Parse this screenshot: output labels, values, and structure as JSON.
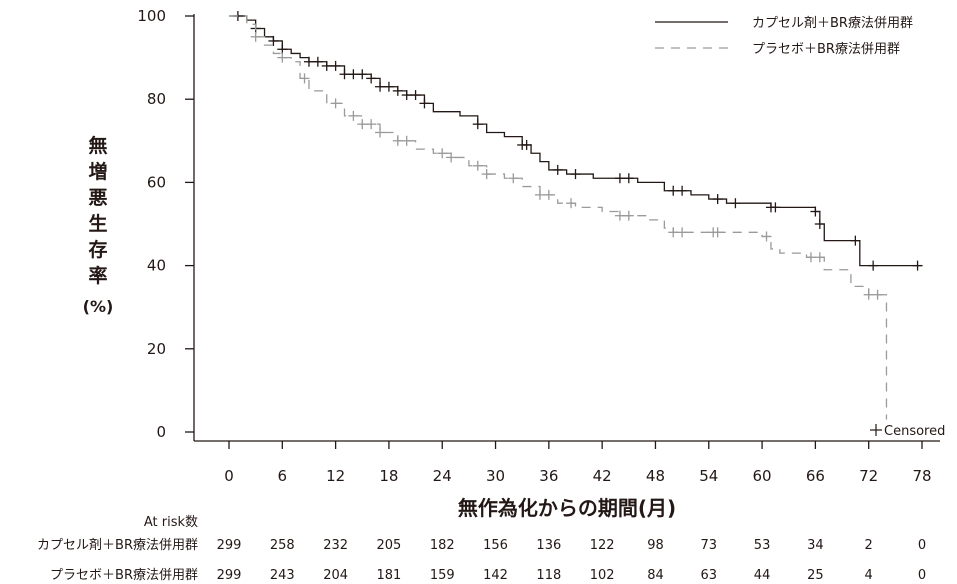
{
  "chart_data": {
    "type": "line",
    "title": "",
    "xlabel": "無作為化からの期間(月)",
    "ylabel": [
      "無",
      "増",
      "悪",
      "生",
      "存",
      "率"
    ],
    "ylabel_unit": "(%)",
    "xlim": [
      0,
      78
    ],
    "ylim": [
      0,
      100
    ],
    "x_ticks": [
      0,
      6,
      12,
      18,
      24,
      30,
      36,
      42,
      48,
      54,
      60,
      66,
      72,
      78
    ],
    "y_ticks": [
      0,
      20,
      40,
      60,
      80,
      100
    ],
    "grid": false,
    "legend_position": "top-right",
    "censored_label": "Censored",
    "series": [
      {
        "name": "カプセル剤＋BR療法併用群",
        "color": "#231815",
        "dash": "solid",
        "steps": [
          [
            0,
            100
          ],
          [
            2,
            99
          ],
          [
            3,
            97
          ],
          [
            4,
            95
          ],
          [
            5,
            94
          ],
          [
            6,
            92
          ],
          [
            7,
            91
          ],
          [
            8,
            90
          ],
          [
            9,
            89
          ],
          [
            11,
            88
          ],
          [
            13,
            86
          ],
          [
            16,
            85
          ],
          [
            17,
            83
          ],
          [
            19,
            82
          ],
          [
            20,
            81
          ],
          [
            22,
            79
          ],
          [
            23,
            77
          ],
          [
            26,
            76
          ],
          [
            28,
            74
          ],
          [
            29,
            72
          ],
          [
            31,
            71
          ],
          [
            33,
            69
          ],
          [
            34,
            67
          ],
          [
            35,
            65
          ],
          [
            36,
            63
          ],
          [
            38,
            62
          ],
          [
            41,
            61
          ],
          [
            46,
            60
          ],
          [
            49,
            58
          ],
          [
            52,
            57
          ],
          [
            54,
            56
          ],
          [
            56,
            55
          ],
          [
            61,
            54
          ],
          [
            66,
            53
          ],
          [
            66.5,
            50
          ],
          [
            67,
            46
          ],
          [
            71,
            40
          ],
          [
            78,
            40
          ]
        ],
        "censored": [
          1,
          3,
          5,
          6,
          9,
          10,
          11,
          12,
          13,
          14,
          15,
          16,
          17,
          18,
          19,
          20,
          21,
          22,
          28,
          33,
          33.5,
          37,
          39,
          44,
          45,
          50,
          51,
          55,
          57,
          61,
          61.5,
          66,
          66.5,
          70.5,
          72.5,
          77.5
        ]
      },
      {
        "name": "プラセボ＋BR療法併用群",
        "color": "#9a9a9a",
        "dash": "dashed",
        "steps": [
          [
            0,
            100
          ],
          [
            2,
            98
          ],
          [
            3,
            95
          ],
          [
            4,
            93
          ],
          [
            5,
            91
          ],
          [
            6,
            90
          ],
          [
            7,
            89
          ],
          [
            8,
            85
          ],
          [
            9,
            82
          ],
          [
            11,
            79
          ],
          [
            13,
            76
          ],
          [
            15,
            74
          ],
          [
            17,
            72
          ],
          [
            19,
            70
          ],
          [
            21,
            68
          ],
          [
            23,
            67
          ],
          [
            25,
            66
          ],
          [
            27,
            64
          ],
          [
            29,
            62
          ],
          [
            31,
            61
          ],
          [
            33,
            59
          ],
          [
            35,
            57
          ],
          [
            37,
            55
          ],
          [
            39,
            54
          ],
          [
            42,
            53
          ],
          [
            44,
            52
          ],
          [
            47,
            51
          ],
          [
            49,
            49
          ],
          [
            50,
            48
          ],
          [
            55,
            48
          ],
          [
            60,
            47
          ],
          [
            61,
            44
          ],
          [
            62,
            43
          ],
          [
            65,
            42
          ],
          [
            67,
            39
          ],
          [
            70,
            35
          ],
          [
            72,
            33
          ],
          [
            74,
            33
          ],
          [
            74,
            3
          ]
        ],
        "censored": [
          3,
          6,
          8.5,
          12,
          14,
          15,
          16,
          17,
          19,
          20,
          24,
          25,
          28,
          29,
          32,
          35,
          36,
          38.5,
          44,
          45,
          50,
          51,
          54.5,
          55,
          60.5,
          65.5,
          66.5,
          72,
          73
        ]
      }
    ],
    "at_risk": {
      "title": "At risk数",
      "times": [
        0,
        6,
        12,
        18,
        24,
        30,
        36,
        42,
        48,
        54,
        60,
        66,
        72,
        78
      ],
      "rows": [
        {
          "label": "カプセル剤＋BR療法併用群",
          "values": [
            299,
            258,
            232,
            205,
            182,
            156,
            136,
            122,
            98,
            73,
            53,
            34,
            2,
            0
          ]
        },
        {
          "label": "プラセボ＋BR療法併用群",
          "values": [
            299,
            243,
            204,
            181,
            159,
            142,
            118,
            102,
            84,
            63,
            44,
            25,
            4,
            0
          ]
        }
      ]
    }
  }
}
